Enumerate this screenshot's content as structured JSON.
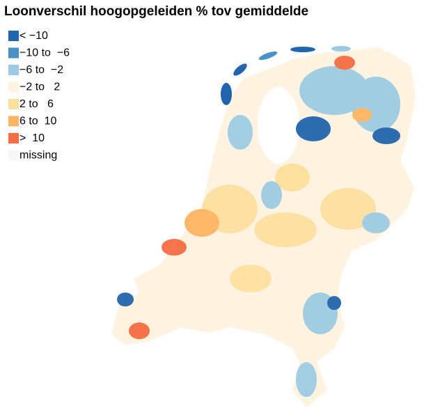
{
  "title": "Loonverschil hoogopgeleiden % tov gemiddelde",
  "legend": [
    {
      "label": "< −10",
      "color": "#2265ad"
    },
    {
      "label": "−10 to  −6",
      "color": "#4a92c5"
    },
    {
      "label": "−6 to  −2",
      "color": "#9ecae1"
    },
    {
      "label": "−2 to   2",
      "color": "#fdf3e0"
    },
    {
      "label": "2 to   6",
      "color": "#fde0a0"
    },
    {
      "label": "6 to  10",
      "color": "#fdb462"
    },
    {
      "label": ">  10",
      "color": "#f46d43"
    },
    {
      "label": "missing",
      "color": "#f7f7f7"
    }
  ]
}
